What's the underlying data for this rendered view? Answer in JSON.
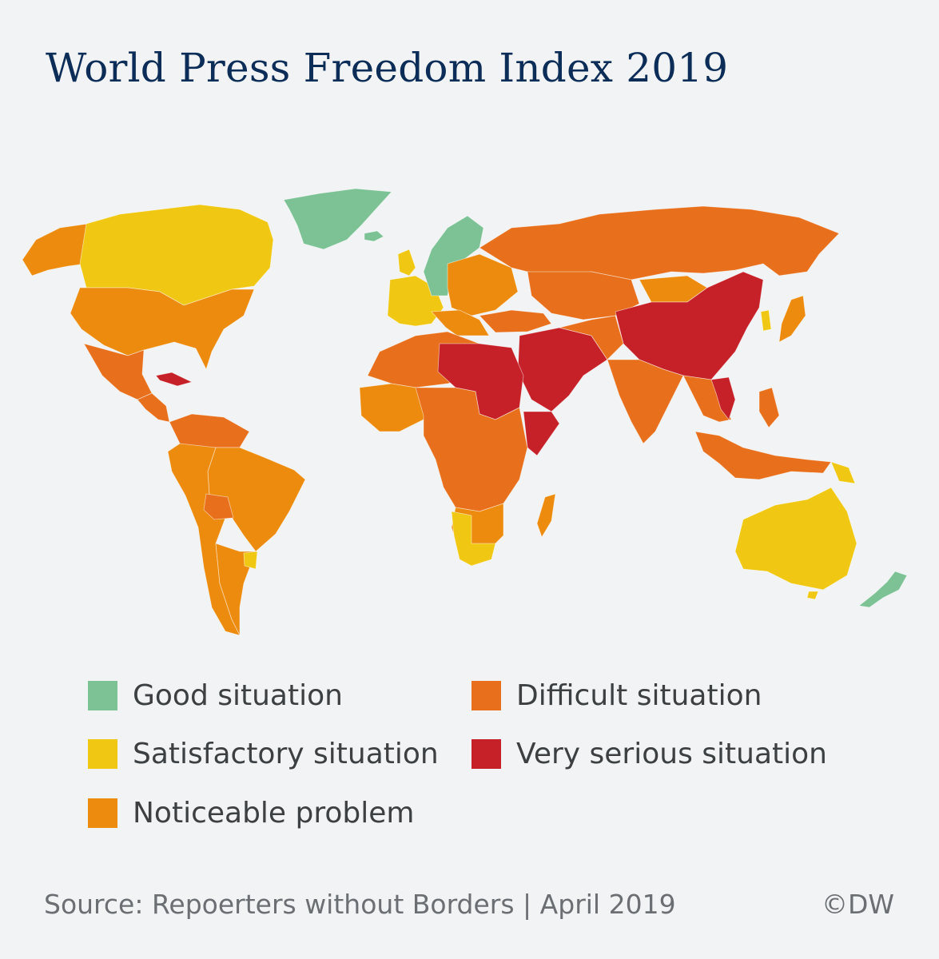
{
  "title": "World Press Freedom Index 2019",
  "legend": [
    {
      "key": "good",
      "label": "Good situation",
      "color": "#7cc295"
    },
    {
      "key": "satisfactory",
      "label": "Satisfactory situation",
      "color": "#f0c814"
    },
    {
      "key": "noticeable",
      "label": "Noticeable problem",
      "color": "#ed8b0e"
    },
    {
      "key": "difficult",
      "label": "Difficult situation",
      "color": "#e8701d"
    },
    {
      "key": "very_serious",
      "label": "Very serious situation",
      "color": "#c62128"
    }
  ],
  "footer": {
    "source": "Source: Repoerters without Borders | April 2019",
    "credit": "©DW"
  }
}
